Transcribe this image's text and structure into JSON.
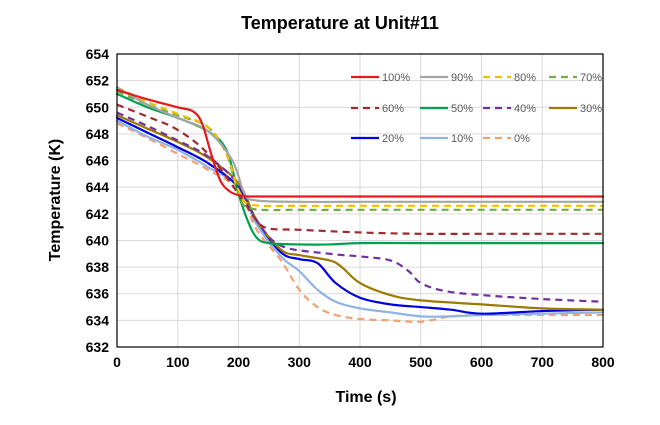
{
  "chart_data": {
    "type": "line",
    "title": "Temperature at Unit#11",
    "xlabel": "Time (s)",
    "ylabel": "Temperature (K)",
    "xlim": [
      0,
      800
    ],
    "ylim": [
      632,
      654
    ],
    "xticks": [
      0,
      100,
      200,
      300,
      400,
      500,
      600,
      700,
      800
    ],
    "yticks": [
      632,
      634,
      636,
      638,
      640,
      642,
      644,
      646,
      648,
      650,
      652,
      654
    ],
    "grid": true,
    "legend_position": "top-right",
    "series": [
      {
        "name": "100%",
        "color": "#e41a1c",
        "dash": "solid",
        "x": [
          0,
          50,
          100,
          125,
          140,
          155,
          170,
          185,
          200,
          210,
          220,
          300,
          400,
          500,
          600,
          700,
          800
        ],
        "y": [
          651.3,
          650.6,
          650.0,
          649.7,
          648.8,
          646.5,
          644.5,
          643.7,
          643.4,
          643.35,
          643.3,
          643.3,
          643.3,
          643.3,
          643.3,
          643.3,
          643.3
        ]
      },
      {
        "name": "90%",
        "color": "#a6a6a6",
        "dash": "solid",
        "x": [
          0,
          50,
          100,
          150,
          190,
          210,
          230,
          300,
          400,
          500,
          600,
          700,
          800
        ],
        "y": [
          651.5,
          650.2,
          649.2,
          648.2,
          646.0,
          643.5,
          643.0,
          642.9,
          642.9,
          642.9,
          642.9,
          642.9,
          642.9
        ]
      },
      {
        "name": "80%",
        "color": "#f0c000",
        "dash": "dash",
        "x": [
          0,
          50,
          100,
          150,
          180,
          200,
          220,
          300,
          400,
          500,
          600,
          700,
          800
        ],
        "y": [
          651.5,
          650.4,
          649.5,
          648.5,
          646.5,
          643.8,
          642.7,
          642.6,
          642.6,
          642.6,
          642.6,
          642.6,
          642.6
        ]
      },
      {
        "name": "70%",
        "color": "#70ad47",
        "dash": "dash",
        "x": [
          0,
          50,
          100,
          150,
          180,
          200,
          220,
          300,
          400,
          500,
          600,
          700,
          800
        ],
        "y": [
          651.2,
          650.2,
          649.4,
          648.5,
          646.5,
          643.5,
          642.4,
          642.3,
          642.3,
          642.3,
          642.3,
          642.3,
          642.3
        ]
      },
      {
        "name": "60%",
        "color": "#a5282d",
        "dash": "dash",
        "x": [
          0,
          50,
          100,
          150,
          200,
          230,
          250,
          300,
          400,
          500,
          600,
          700,
          800
        ],
        "y": [
          650.2,
          649.3,
          648.3,
          646.5,
          643.5,
          641.5,
          640.9,
          640.8,
          640.6,
          640.5,
          640.5,
          640.5,
          640.5
        ]
      },
      {
        "name": "50%",
        "color": "#00a050",
        "dash": "solid",
        "x": [
          0,
          50,
          100,
          150,
          180,
          200,
          215,
          230,
          250,
          300,
          350,
          400,
          500,
          600,
          700,
          800
        ],
        "y": [
          651.0,
          650.0,
          649.2,
          648.2,
          646.8,
          643.5,
          641.5,
          640.2,
          639.8,
          639.7,
          639.7,
          639.8,
          639.8,
          639.8,
          639.8,
          639.8
        ]
      },
      {
        "name": "40%",
        "color": "#7030a0",
        "dash": "dash",
        "x": [
          0,
          50,
          100,
          150,
          200,
          230,
          270,
          350,
          400,
          450,
          480,
          500,
          540,
          600,
          700,
          800
        ],
        "y": [
          649.6,
          648.6,
          647.5,
          646.3,
          644.2,
          641.5,
          639.6,
          639.0,
          638.8,
          638.5,
          637.7,
          636.8,
          636.2,
          635.9,
          635.6,
          635.4
        ]
      },
      {
        "name": "30%",
        "color": "#9c7a00",
        "dash": "solid",
        "x": [
          0,
          50,
          100,
          150,
          200,
          230,
          270,
          300,
          350,
          370,
          400,
          450,
          500,
          600,
          700,
          800
        ],
        "y": [
          649.4,
          648.4,
          647.4,
          646.2,
          644.3,
          641.5,
          639.3,
          638.9,
          638.5,
          638.0,
          636.8,
          635.9,
          635.5,
          635.2,
          634.9,
          634.8
        ]
      },
      {
        "name": "20%",
        "color": "#0000e0",
        "dash": "solid",
        "x": [
          0,
          50,
          100,
          150,
          200,
          230,
          270,
          300,
          330,
          360,
          400,
          450,
          500,
          550,
          600,
          700,
          800
        ],
        "y": [
          649.2,
          648.1,
          647.0,
          645.8,
          644.0,
          641.5,
          639.1,
          638.6,
          638.3,
          636.8,
          635.7,
          635.2,
          635.0,
          634.8,
          634.5,
          634.7,
          634.8
        ]
      },
      {
        "name": "10%",
        "color": "#8fb4e3",
        "dash": "solid",
        "x": [
          0,
          50,
          100,
          150,
          200,
          230,
          270,
          300,
          330,
          360,
          400,
          450,
          500,
          550,
          600,
          700,
          800
        ],
        "y": [
          649.0,
          647.8,
          646.8,
          645.5,
          644.0,
          641.2,
          638.8,
          637.7,
          636.3,
          635.4,
          634.9,
          634.6,
          634.3,
          634.3,
          634.4,
          634.5,
          634.6
        ]
      },
      {
        "name": "0%",
        "color": "#f4a070",
        "dash": "dash",
        "x": [
          0,
          50,
          100,
          150,
          200,
          230,
          270,
          300,
          330,
          360,
          400,
          450,
          500,
          550,
          600,
          700,
          800
        ],
        "y": [
          648.8,
          647.7,
          646.5,
          645.3,
          643.8,
          640.8,
          638.5,
          636.3,
          635.0,
          634.4,
          634.1,
          634.0,
          633.9,
          634.3,
          634.4,
          634.4,
          634.4
        ]
      }
    ]
  }
}
